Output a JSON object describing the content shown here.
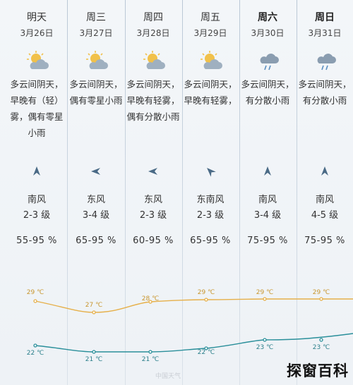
{
  "days": [
    {
      "name": "明天",
      "date": "3月26日",
      "icon": "partly-cloudy-icon",
      "desc": "多云间阴天，早晚有（轻）雾，偶有零星小雨",
      "wind_dir": "南风",
      "wind_level": "2-3 级",
      "humidity": "55-95 %",
      "rotate": 0
    },
    {
      "name": "周三",
      "date": "3月27日",
      "icon": "partly-cloudy-icon",
      "desc": "多云间阴天，偶有零星小雨",
      "wind_dir": "东风",
      "wind_level": "3-4 级",
      "humidity": "65-95 %",
      "rotate": -90
    },
    {
      "name": "周四",
      "date": "3月28日",
      "icon": "partly-cloudy-icon",
      "desc": "多云间阴天，早晚有轻雾，偶有分散小雨",
      "wind_dir": "东风",
      "wind_level": "2-3 级",
      "humidity": "60-95 %",
      "rotate": -90
    },
    {
      "name": "周五",
      "date": "3月29日",
      "icon": "partly-cloudy-icon",
      "desc": "多云间阴天，早晚有轻雾，",
      "wind_dir": "东南风",
      "wind_level": "2-3 级",
      "humidity": "65-95 %",
      "rotate": -45
    },
    {
      "name": "周六",
      "date": "3月30日",
      "icon": "rain-cloud-icon",
      "desc": "多云间阴天，有分散小雨",
      "wind_dir": "南风",
      "wind_level": "3-4 级",
      "humidity": "75-95 %",
      "rotate": 0
    },
    {
      "name": "周日",
      "date": "3月31日",
      "icon": "rain-cloud-icon",
      "desc": "多云间阴天，有分散小雨",
      "wind_dir": "南风",
      "wind_level": "4-5 级",
      "humidity": "75-95 %",
      "rotate": 0
    }
  ],
  "temps": {
    "high": [
      "29 ℃",
      "27 ℃",
      "28 ℃",
      "29 ℃",
      "29 ℃",
      "29 ℃"
    ],
    "low": [
      "22 ℃",
      "21 ℃",
      "21 ℃",
      "22 ℃",
      "23 ℃",
      "23 ℃"
    ],
    "high_color": "#e6b04a",
    "low_color": "#2a8f9a"
  },
  "watermark": "中国天气",
  "brand": "探窗百科"
}
